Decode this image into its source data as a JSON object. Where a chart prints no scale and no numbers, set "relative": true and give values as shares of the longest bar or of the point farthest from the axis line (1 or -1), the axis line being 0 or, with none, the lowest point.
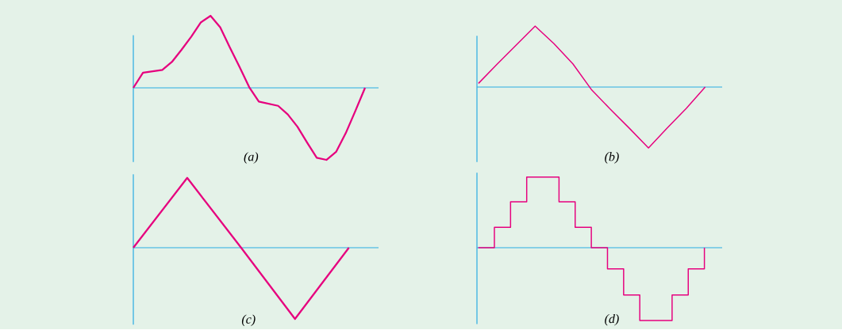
{
  "chart_data": [
    {
      "type": "line",
      "title": "(a)",
      "relative": true,
      "ref_lines": [
        {
          "axis": "y",
          "value": 0,
          "color": "#29abe2"
        }
      ],
      "color": "#e6007e",
      "categories": [
        null,
        null,
        null,
        null,
        null,
        null,
        null,
        null,
        null,
        null,
        null,
        null,
        null,
        null,
        null,
        null,
        null,
        null,
        null,
        null,
        null,
        null,
        null,
        null,
        null
      ],
      "values": [
        0,
        0.21,
        0.23,
        0.25,
        0.36,
        0.53,
        0.71,
        0.91,
        1.0,
        0.84,
        0.56,
        0.29,
        0.01,
        -0.19,
        -0.22,
        -0.25,
        -0.37,
        -0.54,
        -0.76,
        -0.97,
        -1.0,
        -0.89,
        -0.63,
        -0.32,
        0
      ]
    },
    {
      "type": "line",
      "title": "(b)",
      "relative": true,
      "ref_lines": [
        {
          "axis": "y",
          "value": 0,
          "color": "#29abe2"
        }
      ],
      "color": "#e6007e",
      "categories": [
        null,
        null,
        null,
        null,
        null,
        null,
        null,
        null,
        null,
        null,
        null,
        null,
        null
      ],
      "values": [
        0.06,
        0.38,
        0.69,
        1.0,
        0.71,
        0.38,
        -0.05,
        -0.37,
        -0.68,
        -1.0,
        -0.67,
        -0.35,
        0
      ]
    },
    {
      "type": "line",
      "title": "(c)",
      "relative": true,
      "ref_lines": [
        {
          "axis": "y",
          "value": 0,
          "color": "#29abe2"
        }
      ],
      "color": "#e6007e",
      "categories": [
        null,
        null,
        null,
        null,
        null
      ],
      "values": [
        0,
        0.98,
        0,
        -1.0,
        0
      ]
    },
    {
      "type": "step",
      "title": "(d)",
      "relative": true,
      "ref_lines": [
        {
          "axis": "y",
          "value": 0,
          "color": "#29abe2"
        }
      ],
      "color": "#e6007e",
      "categories": [
        null,
        null,
        null,
        null,
        null,
        null,
        null,
        null,
        null,
        null,
        null,
        null,
        null,
        null,
        null
      ],
      "values": [
        0,
        0.28,
        0.63,
        0.97,
        0.97,
        0.63,
        0.28,
        0,
        -0.29,
        -0.65,
        -1.0,
        -1.0,
        -0.65,
        -0.29,
        0
      ]
    }
  ]
}
